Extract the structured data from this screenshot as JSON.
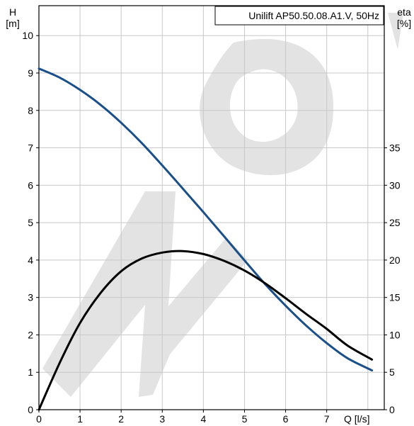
{
  "chart_data": {
    "type": "line",
    "title": "Unilift AP50.50.08.A1.V, 50Hz",
    "x_axis": {
      "label": "Q [l/s]",
      "range": [
        0,
        8.4
      ],
      "ticks": [
        "0",
        "1",
        "2",
        "3",
        "4",
        "5",
        "6",
        "7"
      ]
    },
    "y_left": {
      "label": [
        "H",
        "[m]"
      ],
      "range": [
        0,
        10.8
      ],
      "ticks": [
        "0",
        "1",
        "2",
        "3",
        "4",
        "5",
        "6",
        "7",
        "8",
        "9",
        "10"
      ]
    },
    "y_right": {
      "label": [
        "eta",
        "[%]"
      ],
      "range": [
        0,
        54
      ],
      "ticks": [
        "0",
        "5",
        "10",
        "15",
        "20",
        "25",
        "30",
        "35"
      ]
    },
    "grid": true,
    "series": [
      {
        "color": "#1a4f8a",
        "axis": "left",
        "x": [
          0,
          0.5,
          1,
          1.5,
          2,
          2.5,
          3,
          3.5,
          4,
          4.5,
          5,
          5.5,
          6,
          6.5,
          7,
          7.5,
          8.1
        ],
        "y": [
          9.12,
          8.88,
          8.55,
          8.15,
          7.67,
          7.13,
          6.53,
          5.91,
          5.28,
          4.64,
          3.99,
          3.36,
          2.78,
          2.25,
          1.78,
          1.38,
          1.05
        ]
      },
      {
        "color": "#000000",
        "axis": "right",
        "x": [
          0,
          0.5,
          1,
          1.5,
          2,
          2.5,
          3,
          3.5,
          4,
          4.5,
          5,
          5.5,
          6,
          6.5,
          7,
          7.5,
          8.1
        ],
        "y": [
          0,
          6.2,
          11.6,
          15.6,
          18.5,
          20.2,
          21.0,
          21.2,
          20.8,
          19.9,
          18.6,
          16.9,
          14.9,
          12.8,
          10.8,
          8.6,
          6.7
        ]
      }
    ]
  },
  "watermark": {
    "text": "MOVE"
  }
}
